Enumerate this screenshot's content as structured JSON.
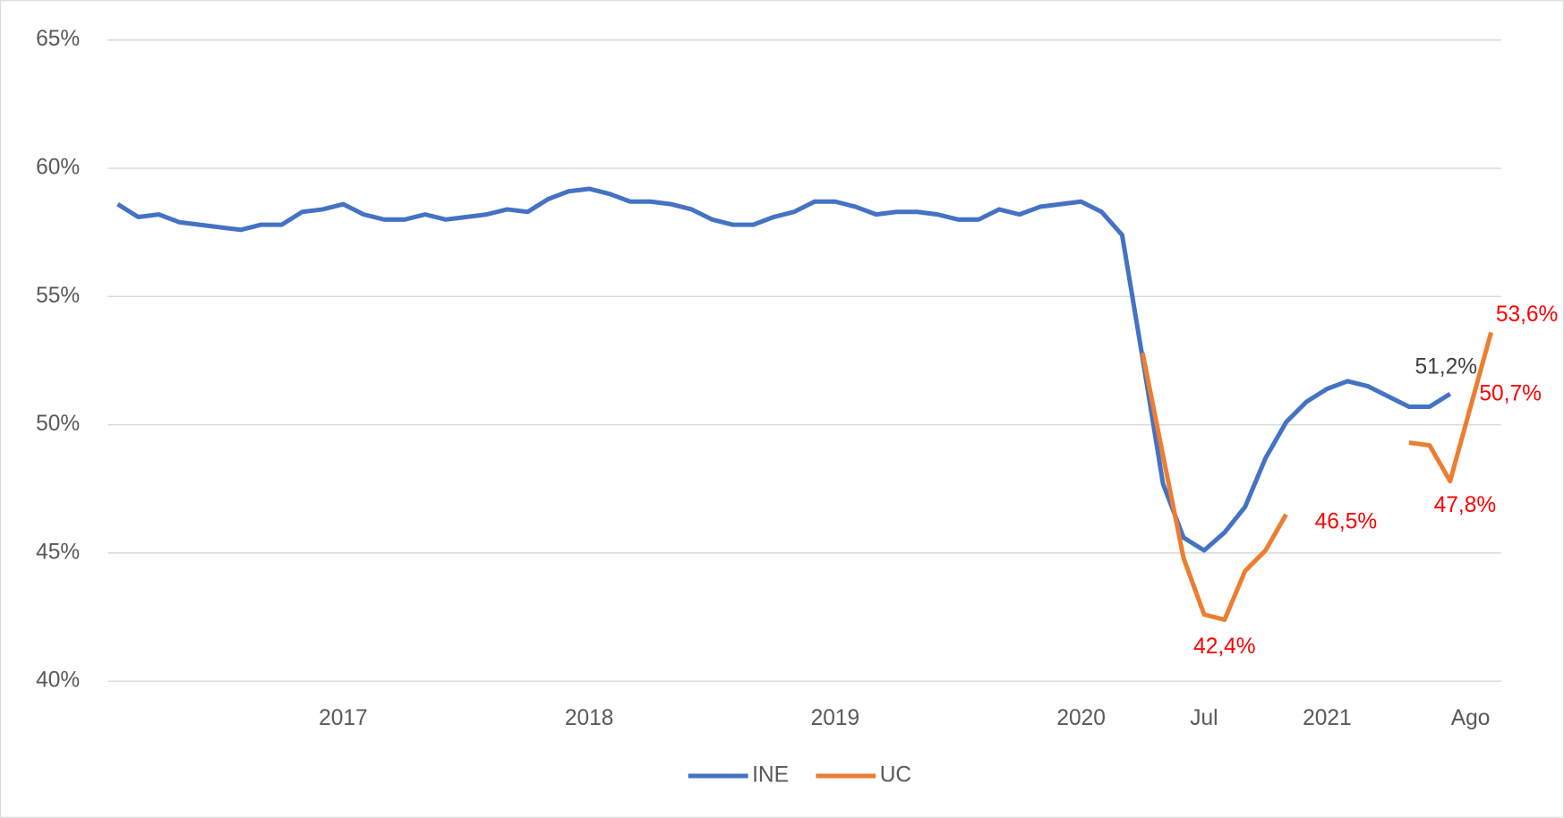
{
  "chart_data": {
    "type": "line",
    "categories": [
      null,
      null,
      null,
      null,
      null,
      null,
      null,
      null,
      null,
      null,
      null,
      "2017",
      null,
      null,
      null,
      null,
      null,
      null,
      null,
      null,
      null,
      null,
      null,
      "2018",
      null,
      null,
      null,
      null,
      null,
      null,
      null,
      null,
      null,
      null,
      null,
      "2019",
      null,
      null,
      null,
      null,
      null,
      null,
      null,
      null,
      null,
      null,
      null,
      "2020",
      null,
      null,
      null,
      null,
      null,
      "Jul",
      null,
      null,
      null,
      null,
      null,
      "2021",
      null,
      null,
      null,
      null,
      null,
      null,
      "Ago",
      null
    ],
    "series": [
      {
        "name": "INE",
        "color": "#4472c4",
        "values": [
          58.6,
          58.1,
          58.2,
          57.9,
          57.8,
          57.7,
          57.6,
          57.8,
          57.8,
          58.3,
          58.4,
          58.6,
          58.2,
          58.0,
          58.0,
          58.2,
          58.0,
          58.1,
          58.2,
          58.4,
          58.3,
          58.8,
          59.1,
          59.2,
          59.0,
          58.7,
          58.7,
          58.6,
          58.4,
          58.0,
          57.8,
          57.8,
          58.1,
          58.3,
          58.7,
          58.7,
          58.5,
          58.2,
          58.3,
          58.3,
          58.2,
          58.0,
          58.0,
          58.4,
          58.2,
          58.5,
          58.6,
          58.7,
          58.3,
          57.4,
          52.6,
          47.7,
          45.6,
          45.1,
          45.8,
          46.8,
          48.7,
          50.1,
          50.9,
          51.4,
          51.7,
          51.5,
          51.1,
          50.7,
          50.7,
          51.2,
          null,
          null
        ],
        "value_labels": [
          null,
          null,
          null,
          null,
          null,
          null,
          null,
          null,
          null,
          null,
          null,
          null,
          null,
          null,
          null,
          null,
          null,
          null,
          null,
          null,
          null,
          null,
          null,
          null,
          null,
          null,
          null,
          null,
          null,
          null,
          null,
          null,
          null,
          null,
          null,
          null,
          null,
          null,
          null,
          null,
          null,
          null,
          null,
          null,
          null,
          null,
          null,
          null,
          null,
          null,
          null,
          null,
          null,
          null,
          null,
          null,
          null,
          null,
          null,
          null,
          null,
          null,
          null,
          null,
          null,
          "51,2%",
          null,
          null
        ]
      },
      {
        "name": "UC",
        "color": "#ed7d31",
        "values": [
          null,
          null,
          null,
          null,
          null,
          null,
          null,
          null,
          null,
          null,
          null,
          null,
          null,
          null,
          null,
          null,
          null,
          null,
          null,
          null,
          null,
          null,
          null,
          null,
          null,
          null,
          null,
          null,
          null,
          null,
          null,
          null,
          null,
          null,
          null,
          null,
          null,
          null,
          null,
          null,
          null,
          null,
          null,
          null,
          null,
          null,
          null,
          null,
          null,
          null,
          52.8,
          48.8,
          44.8,
          42.6,
          42.4,
          44.3,
          45.1,
          46.5,
          null,
          null,
          null,
          null,
          null,
          49.3,
          49.2,
          47.8,
          50.7,
          53.6
        ],
        "value_labels": [
          null,
          null,
          null,
          null,
          null,
          null,
          null,
          null,
          null,
          null,
          null,
          null,
          null,
          null,
          null,
          null,
          null,
          null,
          null,
          null,
          null,
          null,
          null,
          null,
          null,
          null,
          null,
          null,
          null,
          null,
          null,
          null,
          null,
          null,
          null,
          null,
          null,
          null,
          null,
          null,
          null,
          null,
          null,
          null,
          null,
          null,
          null,
          null,
          null,
          null,
          null,
          null,
          null,
          null,
          "42,4%",
          null,
          null,
          "46,5%",
          null,
          null,
          null,
          null,
          null,
          null,
          null,
          "47,8%",
          "50,7%",
          "53,6%"
        ]
      }
    ],
    "ylim": [
      40,
      65
    ],
    "yticks": [
      {
        "value": 40,
        "label": "40%"
      },
      {
        "value": 45,
        "label": "45%"
      },
      {
        "value": 50,
        "label": "50%"
      },
      {
        "value": 55,
        "label": "55%"
      },
      {
        "value": 60,
        "label": "60%"
      },
      {
        "value": 65,
        "label": "65%"
      }
    ],
    "grid": true,
    "legend": "bottom",
    "value_label_colors": {
      "INE": "#404040",
      "UC": "#ff0000"
    }
  }
}
